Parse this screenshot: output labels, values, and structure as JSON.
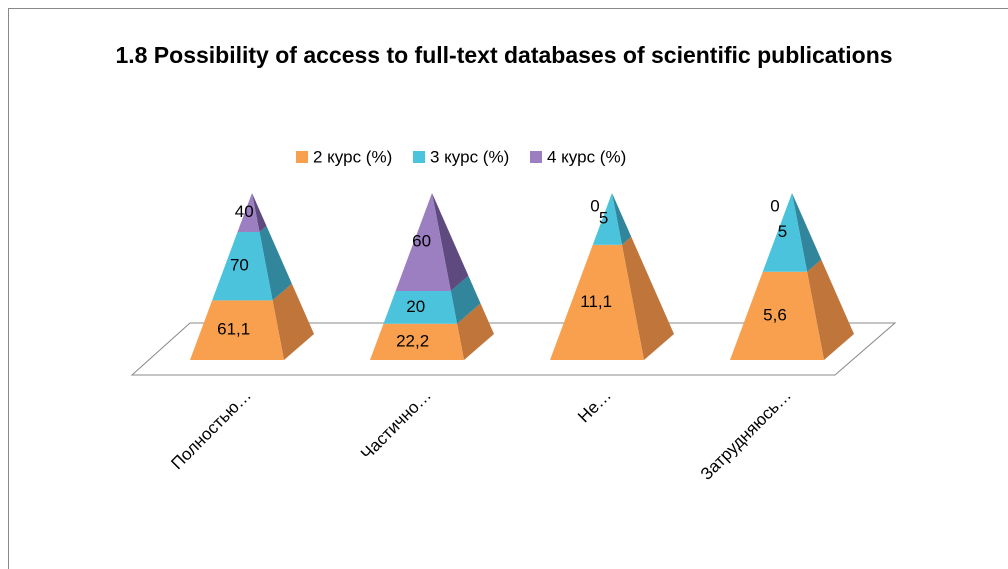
{
  "chart_data": {
    "type": "pyramid",
    "stacking": "percent",
    "title": "1.8 Possibility of access to full-text databases of scientific publications",
    "categories": [
      "Полностью…",
      "Частично…",
      "Не…",
      "Затрудняюсь…"
    ],
    "series": [
      {
        "name": "2 курс (%)",
        "color": "#f9a04f",
        "side_color": "#c0763b",
        "values": [
          61.1,
          22.2,
          11.1,
          5.6
        ],
        "value_labels": [
          "61,1",
          "22,2",
          "11,1",
          "5,6"
        ]
      },
      {
        "name": "3 курс (%)",
        "color": "#4bc3dc",
        "side_color": "#31869b",
        "values": [
          70,
          20,
          5,
          5
        ]
      },
      {
        "name": "4 курс (%)",
        "color": "#9b7fc0",
        "side_color": "#5f4a80",
        "values": [
          40,
          60,
          0,
          0
        ]
      }
    ],
    "legend": "top"
  }
}
